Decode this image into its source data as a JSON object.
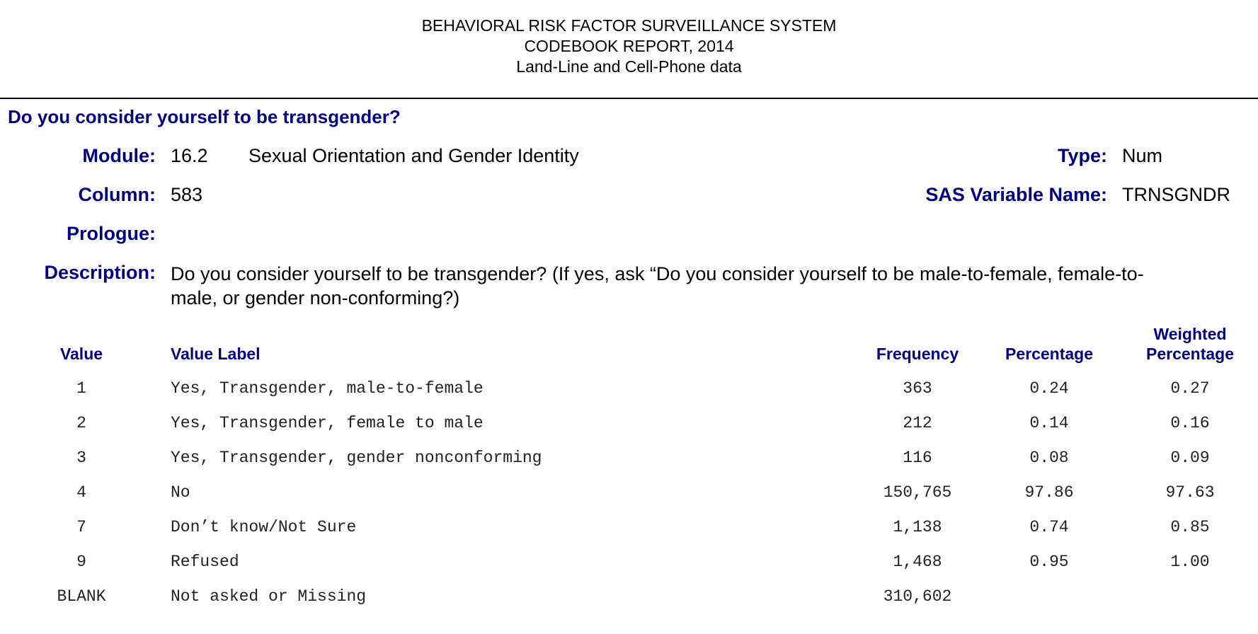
{
  "report": {
    "line1": "BEHAVIORAL RISK FACTOR SURVEILLANCE SYSTEM",
    "line2": "CODEBOOK REPORT, 2014",
    "line3": "Land-Line and Cell-Phone data"
  },
  "question": {
    "title": "Do you consider yourself to be transgender?"
  },
  "fields": {
    "module_label": "Module:",
    "module_number": "16.2",
    "module_name": "Sexual Orientation and Gender Identity",
    "type_label": "Type:",
    "type_value": "Num",
    "column_label": "Column:",
    "column_value": "583",
    "sas_label": "SAS Variable Name:",
    "sas_value": "TRNSGNDR",
    "prologue_label": "Prologue:",
    "description_label": "Description:",
    "description_text": "Do you consider yourself to be transgender?   (If yes, ask “Do you consider yourself to be male-to-female, female-to-male, or gender non-conforming?)"
  },
  "table": {
    "headers": {
      "value": "Value",
      "value_label": "Value Label",
      "frequency": "Frequency",
      "percentage": "Percentage",
      "weighted_line1": "Weighted",
      "weighted_line2": "Percentage"
    },
    "rows": [
      {
        "value": "1",
        "label": "Yes, Transgender, male-to-female",
        "frequency": "363",
        "percentage": "0.24",
        "weighted": "0.27"
      },
      {
        "value": "2",
        "label": "Yes, Transgender, female to male",
        "frequency": "212",
        "percentage": "0.14",
        "weighted": "0.16"
      },
      {
        "value": "3",
        "label": "Yes, Transgender, gender nonconforming",
        "frequency": "116",
        "percentage": "0.08",
        "weighted": "0.09"
      },
      {
        "value": "4",
        "label": "No",
        "frequency": "150,765",
        "percentage": "97.86",
        "weighted": "97.63"
      },
      {
        "value": "7",
        "label": "Don’t know/Not Sure",
        "frequency": "1,138",
        "percentage": "0.74",
        "weighted": "0.85"
      },
      {
        "value": "9",
        "label": "Refused",
        "frequency": "1,468",
        "percentage": "0.95",
        "weighted": "1.00"
      },
      {
        "value": "BLANK",
        "label": "Not asked or Missing",
        "frequency": "310,602",
        "percentage": "",
        "weighted": ""
      }
    ]
  }
}
